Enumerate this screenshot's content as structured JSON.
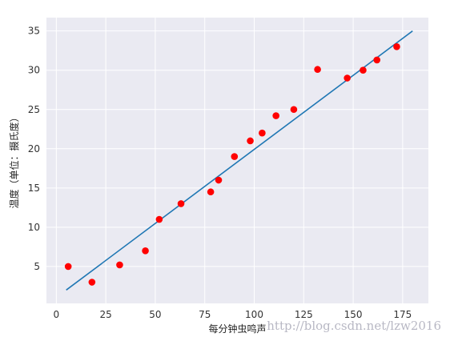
{
  "chart_data": {
    "type": "scatter",
    "title": "",
    "xlabel": "每分钟虫鸣声",
    "ylabel": "温度（单位：摄氏度）",
    "xlim": [
      -5,
      188
    ],
    "ylim": [
      0.3,
      36.7
    ],
    "xticks": [
      0,
      25,
      50,
      75,
      100,
      125,
      150,
      175
    ],
    "yticks": [
      5,
      10,
      15,
      20,
      25,
      30,
      35
    ],
    "grid": true,
    "legend": "none",
    "points": {
      "color": "#ff0000",
      "x": [
        6,
        18,
        32,
        45,
        52,
        63,
        78,
        82,
        90,
        98,
        104,
        111,
        120,
        132,
        147,
        155,
        162,
        172
      ],
      "y": [
        5,
        3,
        5.2,
        7,
        11,
        13,
        14.5,
        16,
        19,
        21,
        22,
        24.2,
        25,
        30.1,
        29,
        30,
        31.3,
        33
      ]
    },
    "fit_line": {
      "color": "#1f77b4",
      "x": [
        5,
        180
      ],
      "y": [
        2,
        35
      ]
    }
  },
  "colors": {
    "plot_background": "#eaeaf2",
    "grid": "#ffffff"
  },
  "watermark": "http://blog.csdn.net/lzw2016"
}
